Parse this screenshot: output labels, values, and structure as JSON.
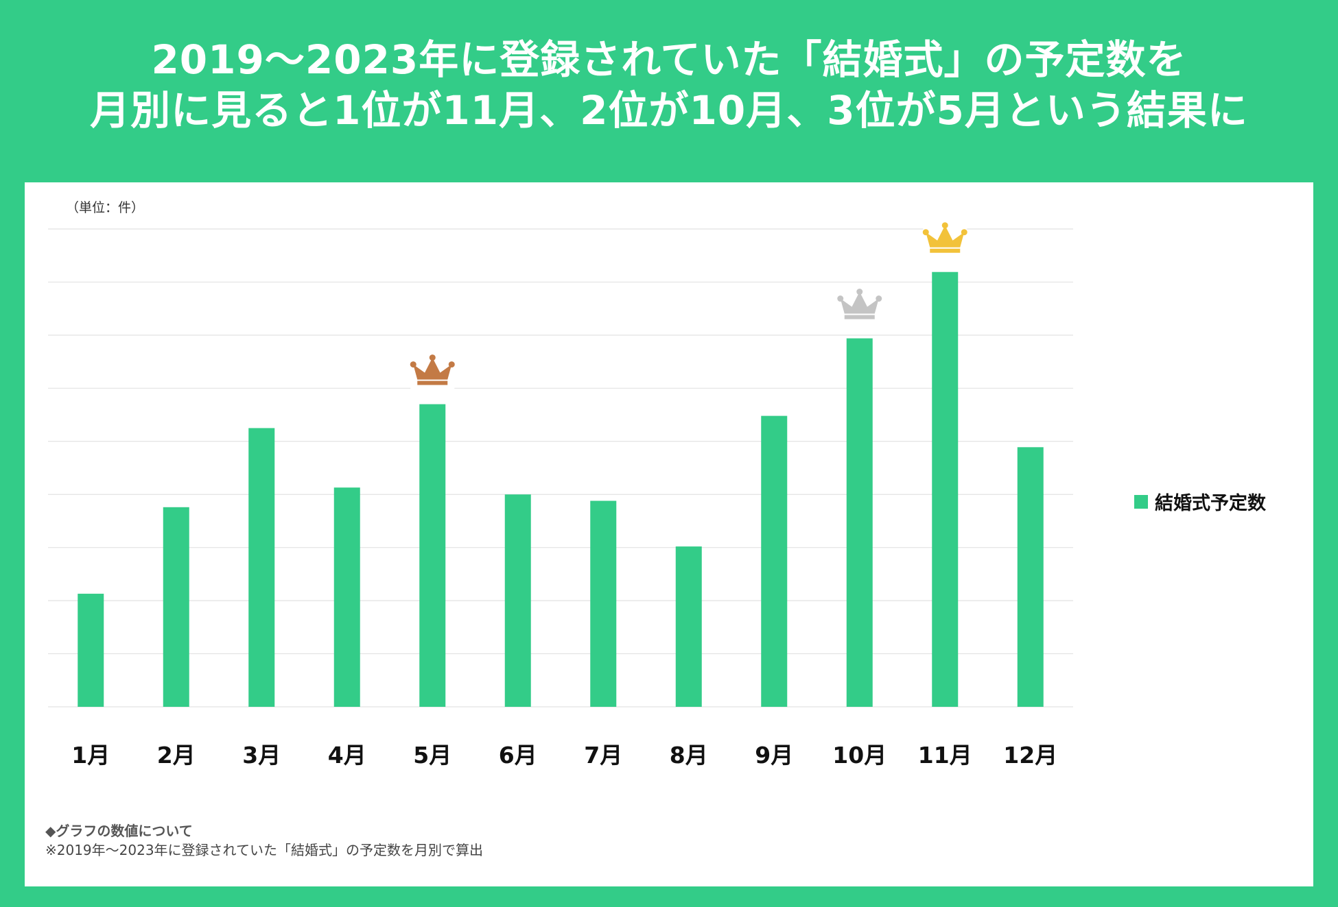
{
  "header": {
    "title_line1": "2019〜2023年に登録されていた「結婚式」の予定数を",
    "title_line2": "月別に見ると1位が11月、2位が10月、3位が5月という結果に"
  },
  "colors": {
    "background": "#33cc88",
    "bar": "#33cc88",
    "gold": "#f2c23a",
    "silver": "#c4c4c4",
    "bronze": "#c37a45"
  },
  "chart_data": {
    "type": "bar",
    "title": "",
    "unit_label": "（単位：件）",
    "categories": [
      "1月",
      "2月",
      "3月",
      "4月",
      "5月",
      "6月",
      "7月",
      "8月",
      "9月",
      "10月",
      "11月",
      "12月"
    ],
    "series": [
      {
        "name": "結婚式予定数",
        "values": [
          213,
          376,
          525,
          413,
          570,
          400,
          388,
          302,
          548,
          694,
          819,
          489
        ]
      }
    ],
    "ylim": [
      0,
      900
    ],
    "y_tick_step": 100,
    "y_tick_labels_shown": false,
    "grid": true,
    "legend_position": "right",
    "annotations": [
      {
        "category": "11月",
        "rank": 1,
        "icon": "gold-crown-icon"
      },
      {
        "category": "10月",
        "rank": 2,
        "icon": "silver-crown-icon"
      },
      {
        "category": "5月",
        "rank": 3,
        "icon": "bronze-crown-icon"
      }
    ]
  },
  "notes": {
    "heading": "◆グラフの数値について",
    "body": "※2019年〜2023年に登録されていた「結婚式」の予定数を月別で算出"
  }
}
